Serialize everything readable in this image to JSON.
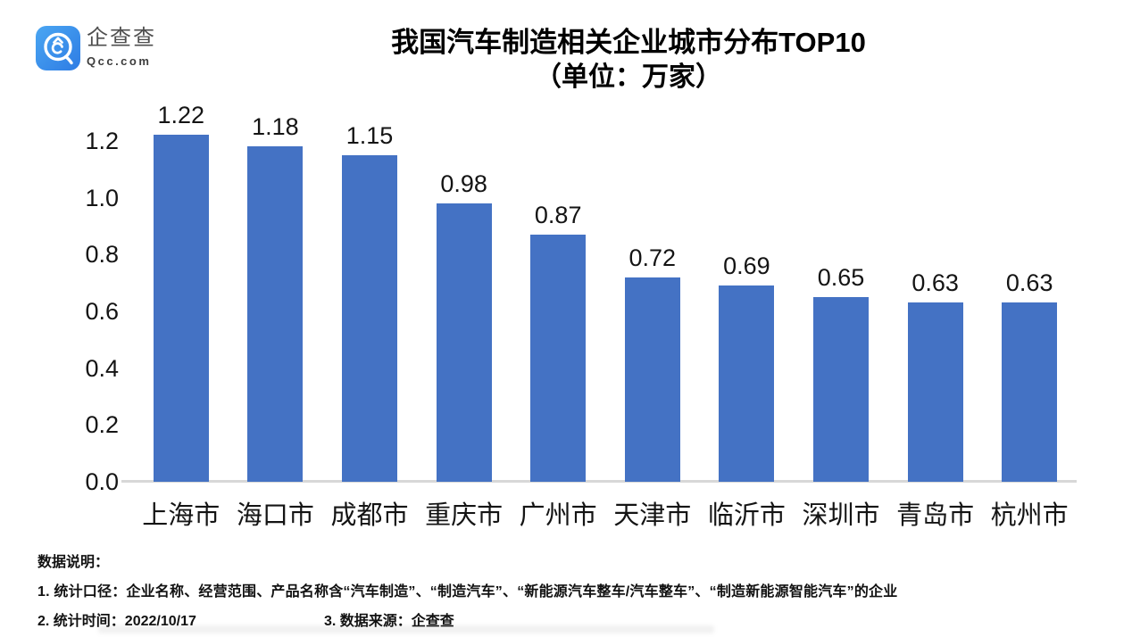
{
  "logo": {
    "name": "企查查",
    "domain": "Qcc.com",
    "icon": "qcc-magnifier-icon",
    "brand_color": "#3A8CEB"
  },
  "chart_data": {
    "type": "bar",
    "title": "我国汽车制造相关企业城市分布TOP10",
    "subtitle": "（单位：万家）",
    "categories": [
      "上海市",
      "海口市",
      "成都市",
      "重庆市",
      "广州市",
      "天津市",
      "临沂市",
      "深圳市",
      "青岛市",
      "杭州市"
    ],
    "values": [
      1.22,
      1.18,
      1.15,
      0.98,
      0.87,
      0.72,
      0.69,
      0.65,
      0.63,
      0.63
    ],
    "value_label_format": "2-decimals",
    "xlabel": "",
    "ylabel": "",
    "ylim": [
      0,
      1.3
    ],
    "yticks": [
      "0.0",
      "0.2",
      "0.4",
      "0.6",
      "0.8",
      "1.0",
      "1.2"
    ],
    "grid": false,
    "legend": "none",
    "bar_color": "#4472C4",
    "baseline_color": "#d8d8d8"
  },
  "footer": {
    "heading": "数据说明：",
    "note1": "1. 统计口径：企业名称、经营范围、产品名称含“汽车制造”、“制造汽车”、“新能源汽车整车/汽车整车”、“制造新能源智能汽车”的企业",
    "note2": "2. 统计时间：2022/10/17",
    "note3": "3. 数据来源：企查查"
  }
}
